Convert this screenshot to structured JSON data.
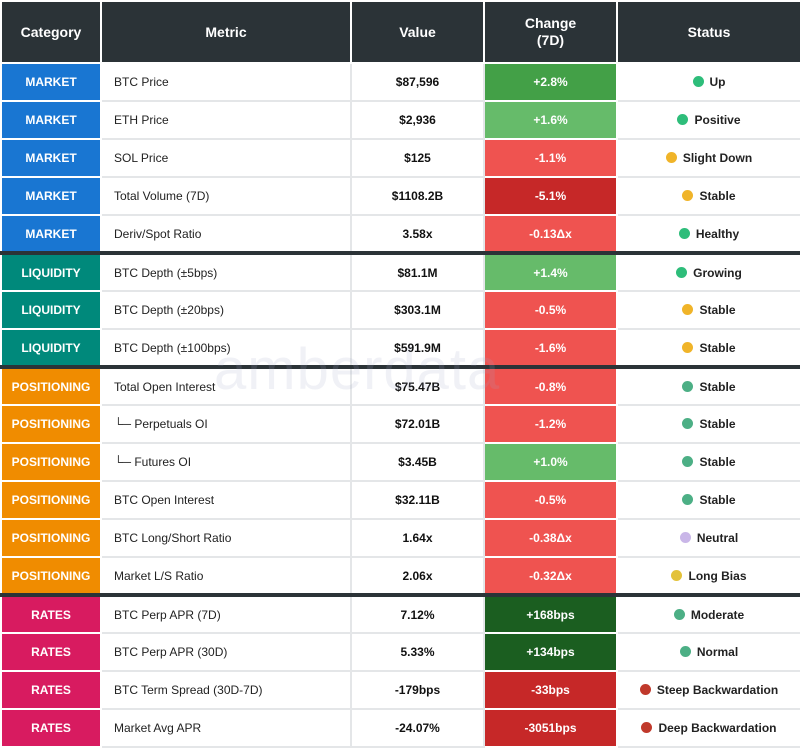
{
  "header": {
    "category": "Category",
    "metric": "Metric",
    "value": "Value",
    "change": "Change\n(7D)",
    "status": "Status"
  },
  "watermark": "amberdata",
  "rows": [
    {
      "category": "MARKET",
      "metric": "BTC Price",
      "value": "$87,596",
      "change": "+2.8%",
      "status": "Up",
      "cat_color": "#1976d2",
      "chg_color": "#43a047",
      "dot_color": "#2ebd7a"
    },
    {
      "category": "MARKET",
      "metric": "ETH Price",
      "value": "$2,936",
      "change": "+1.6%",
      "status": "Positive",
      "cat_color": "#1976d2",
      "chg_color": "#66bb6a",
      "dot_color": "#2ebd7a"
    },
    {
      "category": "MARKET",
      "metric": "SOL Price",
      "value": "$125",
      "change": "-1.1%",
      "status": "Slight Down",
      "cat_color": "#1976d2",
      "chg_color": "#ef5350",
      "dot_color": "#f0b429"
    },
    {
      "category": "MARKET",
      "metric": "Total Volume (7D)",
      "value": "$1108.2B",
      "change": "-5.1%",
      "status": "Stable",
      "cat_color": "#1976d2",
      "chg_color": "#c62828",
      "dot_color": "#f0b429"
    },
    {
      "category": "MARKET",
      "metric": "Deriv/Spot Ratio",
      "value": "3.58x",
      "change": "-0.13Δx",
      "status": "Healthy",
      "cat_color": "#1976d2",
      "chg_color": "#ef5350",
      "dot_color": "#2ebd7a"
    },
    {
      "category": "LIQUIDITY",
      "metric": "BTC Depth (±5bps)",
      "value": "$81.1M",
      "change": "+1.4%",
      "status": "Growing",
      "cat_color": "#00897b",
      "chg_color": "#66bb6a",
      "dot_color": "#2ebd7a"
    },
    {
      "category": "LIQUIDITY",
      "metric": "BTC Depth (±20bps)",
      "value": "$303.1M",
      "change": "-0.5%",
      "status": "Stable",
      "cat_color": "#00897b",
      "chg_color": "#ef5350",
      "dot_color": "#f0b429"
    },
    {
      "category": "LIQUIDITY",
      "metric": "BTC Depth (±100bps)",
      "value": "$591.9M",
      "change": "-1.6%",
      "status": "Stable",
      "cat_color": "#00897b",
      "chg_color": "#ef5350",
      "dot_color": "#f0b429"
    },
    {
      "category": "POSITIONING",
      "metric": "Total Open Interest",
      "value": "$75.47B",
      "change": "-0.8%",
      "status": "Stable",
      "cat_color": "#f08c00",
      "chg_color": "#ef5350",
      "dot_color": "#4caf85"
    },
    {
      "category": "POSITIONING",
      "metric": "└─ Perpetuals OI",
      "value": "$72.01B",
      "change": "-1.2%",
      "status": "Stable",
      "cat_color": "#f08c00",
      "chg_color": "#ef5350",
      "dot_color": "#4caf85"
    },
    {
      "category": "POSITIONING",
      "metric": "└─ Futures OI",
      "value": "$3.45B",
      "change": "+1.0%",
      "status": "Stable",
      "cat_color": "#f08c00",
      "chg_color": "#66bb6a",
      "dot_color": "#4caf85"
    },
    {
      "category": "POSITIONING",
      "metric": "BTC Open Interest",
      "value": "$32.11B",
      "change": "-0.5%",
      "status": "Stable",
      "cat_color": "#f08c00",
      "chg_color": "#ef5350",
      "dot_color": "#4caf85"
    },
    {
      "category": "POSITIONING",
      "metric": "BTC Long/Short Ratio",
      "value": "1.64x",
      "change": "-0.38Δx",
      "status": "Neutral",
      "cat_color": "#f08c00",
      "chg_color": "#ef5350",
      "dot_color": "#c9b6e8"
    },
    {
      "category": "POSITIONING",
      "metric": "Market L/S Ratio",
      "value": "2.06x",
      "change": "-0.32Δx",
      "status": "Long Bias",
      "cat_color": "#f08c00",
      "chg_color": "#ef5350",
      "dot_color": "#e3c23a"
    },
    {
      "category": "RATES",
      "metric": "BTC Perp APR (7D)",
      "value": "7.12%",
      "change": "+168bps",
      "status": "Moderate",
      "cat_color": "#d81b60",
      "chg_color": "#1b5e20",
      "dot_color": "#4caf85"
    },
    {
      "category": "RATES",
      "metric": "BTC Perp APR (30D)",
      "value": "5.33%",
      "change": "+134bps",
      "status": "Normal",
      "cat_color": "#d81b60",
      "chg_color": "#1b5e20",
      "dot_color": "#4caf85"
    },
    {
      "category": "RATES",
      "metric": "BTC Term Spread (30D-7D)",
      "value": "-179bps",
      "change": "-33bps",
      "status": "Steep Backwardation",
      "cat_color": "#d81b60",
      "chg_color": "#c62828",
      "dot_color": "#c0392b"
    },
    {
      "category": "RATES",
      "metric": "Market Avg APR",
      "value": "-24.07%",
      "change": "-3051bps",
      "status": "Deep Backwardation",
      "cat_color": "#d81b60",
      "chg_color": "#c62828",
      "dot_color": "#c0392b"
    }
  ]
}
